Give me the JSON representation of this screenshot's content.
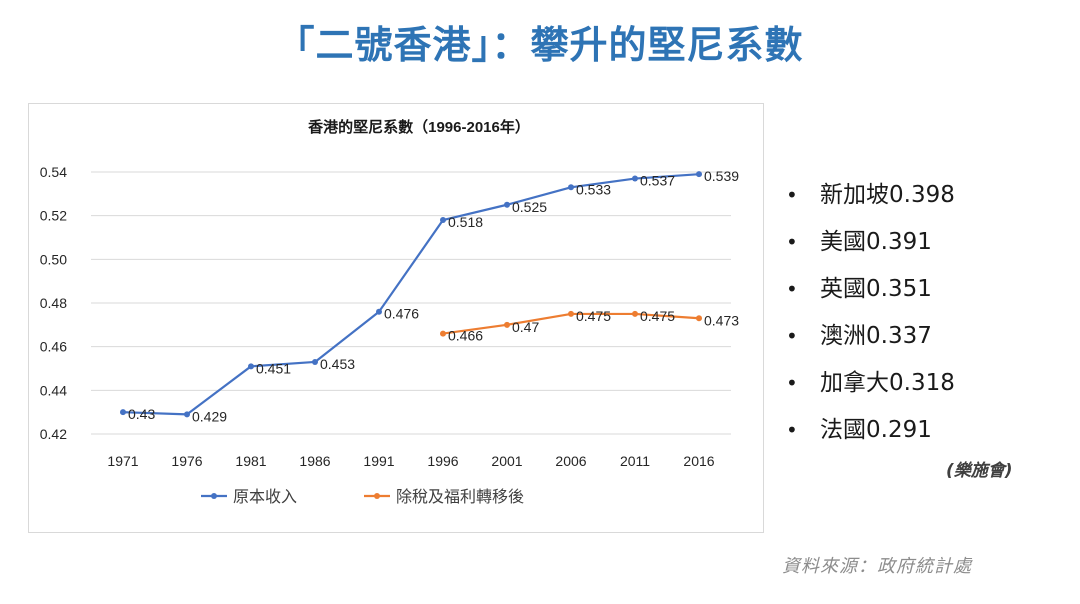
{
  "slide": {
    "title": "「二號香港」：攀升的堅尼系數",
    "note": "(樂施會)",
    "source": "資料來源：政府統計處"
  },
  "countries": [
    {
      "label": "新加坡0.398"
    },
    {
      "label": "美國0.391"
    },
    {
      "label": "英國0.351"
    },
    {
      "label": "澳洲0.337"
    },
    {
      "label": "加拿大0.318"
    },
    {
      "label": "法國0.291"
    }
  ],
  "bullet_char": "•",
  "chart_data": {
    "type": "line",
    "title": "香港的堅尼系數（1996-2016年）",
    "categories": [
      "1971",
      "1976",
      "1981",
      "1986",
      "1991",
      "1996",
      "2001",
      "2006",
      "2011",
      "2016"
    ],
    "ylim": [
      0.42,
      0.54
    ],
    "yticks": [
      0.42,
      0.44,
      0.46,
      0.48,
      0.5,
      0.52,
      0.54
    ],
    "ytick_labels": [
      "0.42",
      "0.44",
      "0.46",
      "0.48",
      "0.50",
      "0.52",
      "0.54"
    ],
    "grid": true,
    "legend_position": "bottom",
    "series": [
      {
        "name": "原本收入",
        "color": "#4472c4",
        "values": [
          0.43,
          0.429,
          0.451,
          0.453,
          0.476,
          0.518,
          0.525,
          0.533,
          0.537,
          0.539
        ],
        "labels": [
          "0.43",
          "0.429",
          "0.451",
          "0.453",
          "0.476",
          "0.518",
          "0.525",
          "0.533",
          "0.537",
          "0.539"
        ]
      },
      {
        "name": "除稅及福利轉移後",
        "color": "#ed7d31",
        "values": [
          null,
          null,
          null,
          null,
          null,
          0.466,
          0.47,
          0.475,
          0.475,
          0.473
        ],
        "labels": [
          null,
          null,
          null,
          null,
          null,
          "0.466",
          "0.47",
          "0.475",
          "0.475",
          "0.473"
        ]
      }
    ]
  }
}
